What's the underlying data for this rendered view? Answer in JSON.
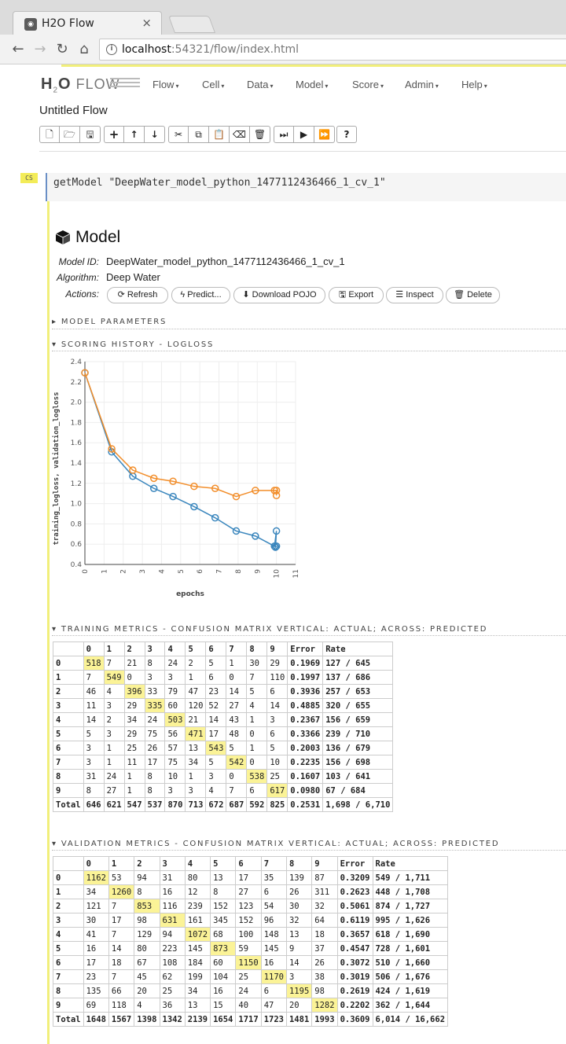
{
  "browser": {
    "tab_title": "H2O Flow",
    "url_host": "localhost",
    "url_rest": ":54321/flow/index.html"
  },
  "app": {
    "logo_h": "H",
    "logo_2": "2",
    "logo_o": "O",
    "logo_flow": "FLOW",
    "menus": [
      "Flow",
      "Cell",
      "Data",
      "Model",
      "Score",
      "Admin",
      "Help"
    ],
    "flow_title": "Untitled Flow"
  },
  "cell": {
    "tag": "CS",
    "code": "getModel \"DeepWater_model_python_1477112436466_1_cv_1\""
  },
  "model": {
    "heading": "Model",
    "id_label": "Model ID:",
    "id_value": "DeepWater_model_python_1477112436466_1_cv_1",
    "algo_label": "Algorithm:",
    "algo_value": "Deep Water",
    "actions_label": "Actions:",
    "actions": {
      "refresh": "Refresh",
      "predict": "Predict...",
      "download_pojo": "Download POJO",
      "export": "Export",
      "inspect": "Inspect",
      "delete": "Delete"
    }
  },
  "sections": {
    "model_parameters": "MODEL PARAMETERS",
    "scoring_history": "SCORING HISTORY - LOGLOSS",
    "training_metrics": "TRAINING METRICS - CONFUSION MATRIX VERTICAL: ACTUAL; ACROSS: PREDICTED",
    "validation_metrics": "VALIDATION METRICS - CONFUSION MATRIX VERTICAL: ACTUAL; ACROSS: PREDICTED"
  },
  "chart_data": {
    "type": "line",
    "xlabel": "epochs",
    "ylabel": "training_logloss, validation_logloss",
    "xlim": [
      0,
      11
    ],
    "ylim": [
      0.4,
      2.4
    ],
    "xticks": [
      "0",
      "1",
      "2",
      "3",
      "4",
      "5",
      "6",
      "7",
      "8",
      "9",
      "10",
      "11"
    ],
    "yticks": [
      "0.4",
      "0.6",
      "0.8",
      "1.0",
      "1.2",
      "1.4",
      "1.6",
      "1.8",
      "2.0",
      "2.2",
      "2.4"
    ],
    "grid": true,
    "colors": {
      "training": "#3a86bd",
      "validation": "#f28e2b"
    },
    "series": [
      {
        "x": [
          0,
          1.4,
          2.5,
          3.6,
          4.6,
          5.7,
          6.8,
          7.9,
          8.9,
          9.9,
          10.0,
          9.95,
          10.0
        ],
        "values": [
          2.29,
          1.51,
          1.27,
          1.15,
          1.07,
          0.97,
          0.86,
          0.73,
          0.68,
          0.58,
          0.73,
          0.57,
          0.58
        ]
      },
      {
        "x": [
          0,
          1.4,
          2.5,
          3.6,
          4.6,
          5.7,
          6.8,
          7.9,
          8.9,
          9.9,
          10.0,
          10.0
        ],
        "values": [
          2.29,
          1.54,
          1.33,
          1.25,
          1.22,
          1.17,
          1.15,
          1.07,
          1.13,
          1.13,
          1.13,
          1.08
        ]
      }
    ]
  },
  "training_cm": {
    "headers": [
      "",
      "0",
      "1",
      "2",
      "3",
      "4",
      "5",
      "6",
      "7",
      "8",
      "9",
      "Error",
      "Rate"
    ],
    "rows": [
      [
        "0",
        "518",
        "7",
        "21",
        "8",
        "24",
        "2",
        "5",
        "1",
        "30",
        "29",
        "0.1969",
        "127 / 645"
      ],
      [
        "1",
        "7",
        "549",
        "0",
        "3",
        "3",
        "1",
        "6",
        "0",
        "7",
        "110",
        "0.1997",
        "137 / 686"
      ],
      [
        "2",
        "46",
        "4",
        "396",
        "33",
        "79",
        "47",
        "23",
        "14",
        "5",
        "6",
        "0.3936",
        "257 / 653"
      ],
      [
        "3",
        "11",
        "3",
        "29",
        "335",
        "60",
        "120",
        "52",
        "27",
        "4",
        "14",
        "0.4885",
        "320 / 655"
      ],
      [
        "4",
        "14",
        "2",
        "34",
        "24",
        "503",
        "21",
        "14",
        "43",
        "1",
        "3",
        "0.2367",
        "156 / 659"
      ],
      [
        "5",
        "5",
        "3",
        "29",
        "75",
        "56",
        "471",
        "17",
        "48",
        "0",
        "6",
        "0.3366",
        "239 / 710"
      ],
      [
        "6",
        "3",
        "1",
        "25",
        "26",
        "57",
        "13",
        "543",
        "5",
        "1",
        "5",
        "0.2003",
        "136 / 679"
      ],
      [
        "7",
        "3",
        "1",
        "11",
        "17",
        "75",
        "34",
        "5",
        "542",
        "0",
        "10",
        "0.2235",
        "156 / 698"
      ],
      [
        "8",
        "31",
        "24",
        "1",
        "8",
        "10",
        "1",
        "3",
        "0",
        "538",
        "25",
        "0.1607",
        "103 / 641"
      ],
      [
        "9",
        "8",
        "27",
        "1",
        "8",
        "3",
        "3",
        "4",
        "7",
        "6",
        "617",
        "0.0980",
        "67 / 684"
      ],
      [
        "Total",
        "646",
        "621",
        "547",
        "537",
        "870",
        "713",
        "672",
        "687",
        "592",
        "825",
        "0.2531",
        "1,698 / 6,710"
      ]
    ]
  },
  "validation_cm": {
    "headers": [
      "",
      "0",
      "1",
      "2",
      "3",
      "4",
      "5",
      "6",
      "7",
      "8",
      "9",
      "Error",
      "Rate"
    ],
    "rows": [
      [
        "0",
        "1162",
        "53",
        "94",
        "31",
        "80",
        "13",
        "17",
        "35",
        "139",
        "87",
        "0.3209",
        "549 / 1,711"
      ],
      [
        "1",
        "34",
        "1260",
        "8",
        "16",
        "12",
        "8",
        "27",
        "6",
        "26",
        "311",
        "0.2623",
        "448 / 1,708"
      ],
      [
        "2",
        "121",
        "7",
        "853",
        "116",
        "239",
        "152",
        "123",
        "54",
        "30",
        "32",
        "0.5061",
        "874 / 1,727"
      ],
      [
        "3",
        "30",
        "17",
        "98",
        "631",
        "161",
        "345",
        "152",
        "96",
        "32",
        "64",
        "0.6119",
        "995 / 1,626"
      ],
      [
        "4",
        "41",
        "7",
        "129",
        "94",
        "1072",
        "68",
        "100",
        "148",
        "13",
        "18",
        "0.3657",
        "618 / 1,690"
      ],
      [
        "5",
        "16",
        "14",
        "80",
        "223",
        "145",
        "873",
        "59",
        "145",
        "9",
        "37",
        "0.4547",
        "728 / 1,601"
      ],
      [
        "6",
        "17",
        "18",
        "67",
        "108",
        "184",
        "60",
        "1150",
        "16",
        "14",
        "26",
        "0.3072",
        "510 / 1,660"
      ],
      [
        "7",
        "23",
        "7",
        "45",
        "62",
        "199",
        "104",
        "25",
        "1170",
        "3",
        "38",
        "0.3019",
        "506 / 1,676"
      ],
      [
        "8",
        "135",
        "66",
        "20",
        "25",
        "34",
        "16",
        "24",
        "6",
        "1195",
        "98",
        "0.2619",
        "424 / 1,619"
      ],
      [
        "9",
        "69",
        "118",
        "4",
        "36",
        "13",
        "15",
        "40",
        "47",
        "20",
        "1282",
        "0.2202",
        "362 / 1,644"
      ],
      [
        "Total",
        "1648",
        "1567",
        "1398",
        "1342",
        "2139",
        "1654",
        "1717",
        "1723",
        "1481",
        "1993",
        "0.3609",
        "6,014 / 16,662"
      ]
    ]
  }
}
